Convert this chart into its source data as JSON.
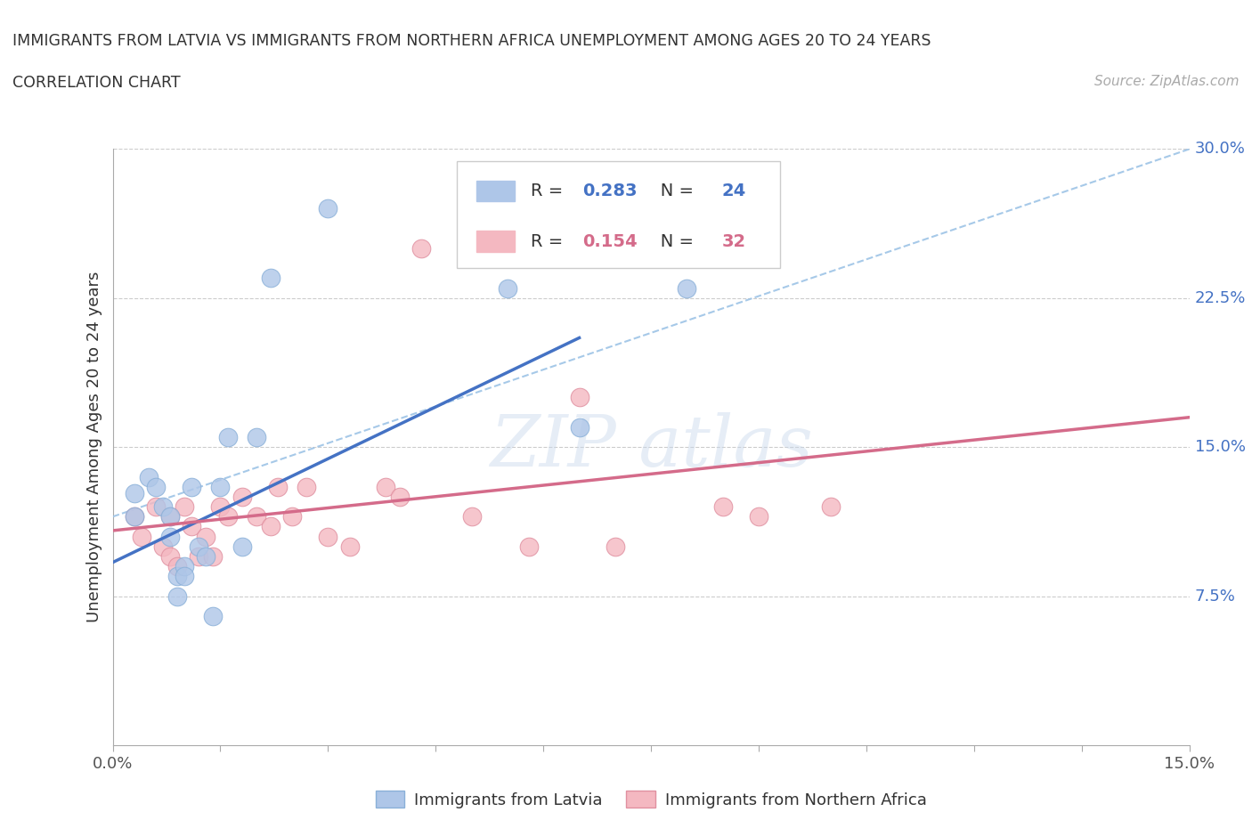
{
  "title_line1": "IMMIGRANTS FROM LATVIA VS IMMIGRANTS FROM NORTHERN AFRICA UNEMPLOYMENT AMONG AGES 20 TO 24 YEARS",
  "title_line2": "CORRELATION CHART",
  "source_text": "Source: ZipAtlas.com",
  "ylabel": "Unemployment Among Ages 20 to 24 years",
  "xlim": [
    0.0,
    0.15
  ],
  "ylim": [
    0.0,
    0.3
  ],
  "r_latvia": "0.283",
  "n_latvia": "24",
  "r_northafrica": "0.154",
  "n_northafrica": "32",
  "color_blue": "#aec6e8",
  "color_blue_edge": "#8ab0d8",
  "color_pink": "#f4b8c1",
  "color_pink_edge": "#e090a0",
  "color_blue_line": "#4472c4",
  "color_pink_line": "#d46b8a",
  "color_dashed_line": "#9dc3e6",
  "color_grid": "#cccccc",
  "color_ytick": "#4472c4",
  "color_xtick": "#555555",
  "legend_blue_label": "Immigrants from Latvia",
  "legend_pink_label": "Immigrants from Northern Africa",
  "latvia_x": [
    0.003,
    0.003,
    0.005,
    0.006,
    0.007,
    0.008,
    0.008,
    0.009,
    0.009,
    0.01,
    0.01,
    0.011,
    0.012,
    0.013,
    0.014,
    0.015,
    0.016,
    0.018,
    0.02,
    0.022,
    0.03,
    0.055,
    0.065,
    0.08
  ],
  "latvia_y": [
    0.127,
    0.115,
    0.135,
    0.13,
    0.12,
    0.115,
    0.105,
    0.085,
    0.075,
    0.09,
    0.085,
    0.13,
    0.1,
    0.095,
    0.065,
    0.13,
    0.155,
    0.1,
    0.155,
    0.235,
    0.27,
    0.23,
    0.16,
    0.23
  ],
  "northafrica_x": [
    0.003,
    0.004,
    0.006,
    0.007,
    0.008,
    0.008,
    0.009,
    0.01,
    0.011,
    0.012,
    0.013,
    0.014,
    0.015,
    0.016,
    0.018,
    0.02,
    0.022,
    0.023,
    0.025,
    0.027,
    0.03,
    0.033,
    0.038,
    0.04,
    0.043,
    0.05,
    0.058,
    0.065,
    0.07,
    0.085,
    0.09,
    0.1
  ],
  "northafrica_y": [
    0.115,
    0.105,
    0.12,
    0.1,
    0.095,
    0.115,
    0.09,
    0.12,
    0.11,
    0.095,
    0.105,
    0.095,
    0.12,
    0.115,
    0.125,
    0.115,
    0.11,
    0.13,
    0.115,
    0.13,
    0.105,
    0.1,
    0.13,
    0.125,
    0.25,
    0.115,
    0.1,
    0.175,
    0.1,
    0.12,
    0.115,
    0.12
  ],
  "blue_line_x0": 0.0,
  "blue_line_y0": 0.092,
  "blue_line_x1": 0.065,
  "blue_line_y1": 0.205,
  "pink_line_x0": 0.0,
  "pink_line_y0": 0.108,
  "pink_line_x1": 0.15,
  "pink_line_y1": 0.165,
  "dash_line_x0": 0.0,
  "dash_line_y0": 0.115,
  "dash_line_x1": 0.15,
  "dash_line_y1": 0.3
}
